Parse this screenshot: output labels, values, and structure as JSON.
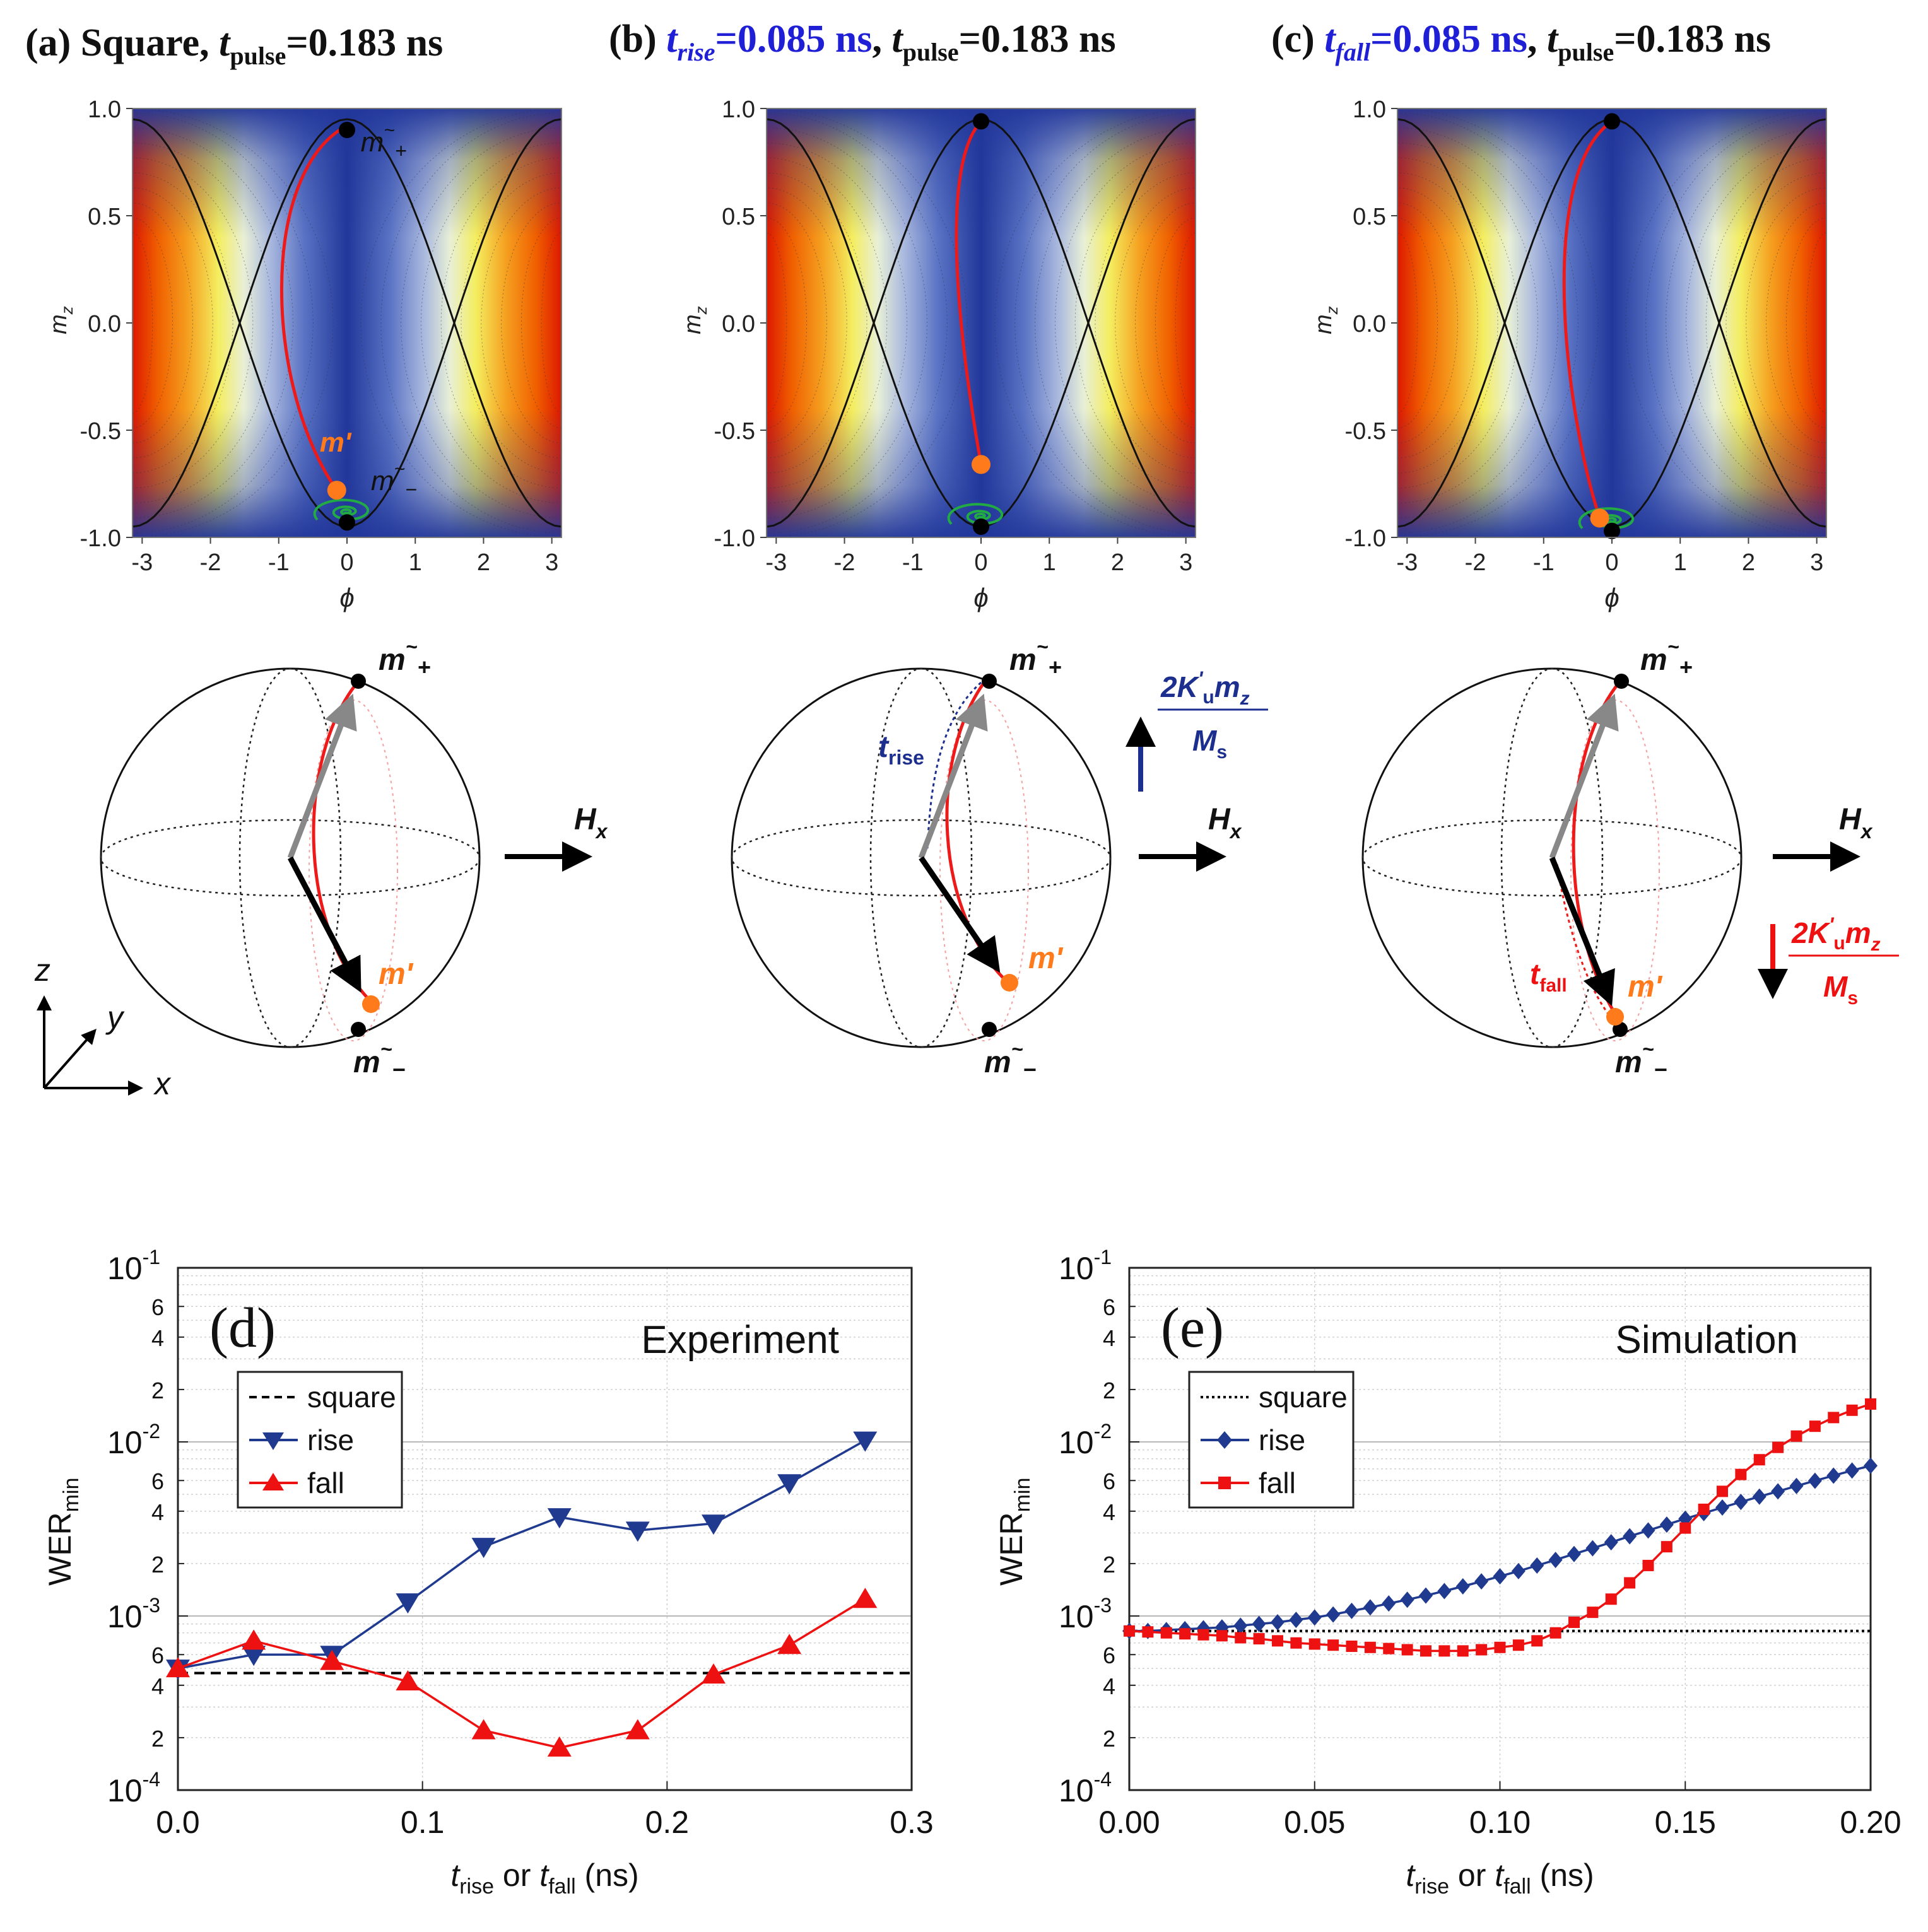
{
  "colors": {
    "blue_dark": "#1c2f8f",
    "blue_mid": "#3a58b8",
    "heat_red": "#dd1a00",
    "heat_orange": "#f58a00",
    "heat_yellow": "#f4f25a",
    "trajectory_red": "#ee1a1a",
    "green": "#22aa44",
    "orange": "#ff7a1a",
    "title_blue": "#1f1fd6",
    "rise_blue": "#1f3a8f",
    "fall_red": "#ee1111"
  },
  "panel_a": {
    "prefix": "(a) Square, ",
    "t": "t",
    "pulse_sub": "pulse",
    "value": "=0.183 ns"
  },
  "panel_b": {
    "prefix": "(b) ",
    "t": "t",
    "rise_sub": "rise",
    "rise_value": "=0.085 ns",
    "sep": ", ",
    "pulse_sub": "pulse",
    "pulse_value": "=0.183 ns"
  },
  "panel_c": {
    "prefix": "(c) ",
    "t": "t",
    "fall_sub": "fall",
    "fall_value": "=0.085 ns",
    "sep": ", ",
    "pulse_sub": "pulse",
    "pulse_value": "=0.183 ns"
  },
  "energy_maps": {
    "ylabel": "m",
    "ylabel_sub": "z",
    "xlabel": "ϕ",
    "y_ticks": [
      "1.0",
      "0.5",
      "0.0",
      "-0.5",
      "-1.0"
    ],
    "x_ticks": [
      "-3",
      "-2",
      "-1",
      "0",
      "1",
      "2",
      "3"
    ],
    "label_m_plus": "m",
    "label_m_minus": "m",
    "label_m_prime": "m'"
  },
  "spheres": {
    "m_plus": "m",
    "m_minus": "m",
    "tilde": "~",
    "plus": "+",
    "minus": "−",
    "m_prime": "m'",
    "hx": "H",
    "hx_sub": "x",
    "t_rise": "t",
    "t_rise_sub": "rise",
    "t_fall": "t",
    "t_fall_sub": "fall",
    "field_num": "2K",
    "field_num_sup": "'",
    "field_num_sub": "u",
    "field_num_m": "m",
    "field_num_m_sub": "z",
    "field_den": "M",
    "field_den_sub": "s",
    "axis_z": "z",
    "axis_y": "y",
    "axis_x": "x"
  },
  "chart_data": [
    {
      "id": "d",
      "type": "line",
      "panel_label": "(d)",
      "title": "Experiment",
      "xlabel": "t",
      "xlabel_sub1": "rise",
      "xlabel_mid": " or ",
      "xlabel_sub2": "fall",
      "xlabel_units": " (ns)",
      "ylabel": "WER",
      "ylabel_sub": "min",
      "yscale": "log",
      "xlim": [
        0,
        0.3
      ],
      "ylim": [
        0.0001,
        0.1
      ],
      "x_ticks": [
        0,
        0.1,
        0.2,
        0.3
      ],
      "x_tick_labels": [
        "0.0",
        "0.1",
        "0.2",
        "0.3"
      ],
      "y_major": [
        0.0001,
        0.001,
        0.01,
        0.1
      ],
      "y_major_bases": [
        "10",
        "10",
        "10",
        "10"
      ],
      "y_major_exps": [
        "-4",
        "-3",
        "-2",
        "-1"
      ],
      "y_minor_labels": [
        "2",
        "4",
        "6"
      ],
      "legend": [
        "square",
        "rise",
        "fall"
      ],
      "series": [
        {
          "name": "square",
          "style": "dashed",
          "color": "#000000",
          "x": [
            0,
            0.3
          ],
          "values": [
            0.00047,
            0.00047
          ]
        },
        {
          "name": "rise",
          "marker": "triangle-down",
          "color": "#1f3a8f",
          "x": [
            0,
            0.031,
            0.063,
            0.094,
            0.125,
            0.156,
            0.188,
            0.219,
            0.25,
            0.281
          ],
          "values": [
            0.0005,
            0.0006,
            0.0006,
            0.0012,
            0.0025,
            0.0037,
            0.0031,
            0.0034,
            0.0058,
            0.0102
          ]
        },
        {
          "name": "fall",
          "marker": "triangle-up",
          "color": "#ee1111",
          "x": [
            0,
            0.031,
            0.063,
            0.094,
            0.125,
            0.156,
            0.188,
            0.219,
            0.25,
            0.281
          ],
          "values": [
            0.0005,
            0.00072,
            0.00055,
            0.00042,
            0.00022,
            0.000175,
            0.00022,
            0.00046,
            0.00068,
            0.00125
          ]
        }
      ]
    },
    {
      "id": "e",
      "type": "line",
      "panel_label": "(e)",
      "title": "Simulation",
      "xlabel": "t",
      "xlabel_sub1": "rise",
      "xlabel_mid": " or ",
      "xlabel_sub2": "fall",
      "xlabel_units": " (ns)",
      "ylabel": "WER",
      "ylabel_sub": "min",
      "yscale": "log",
      "xlim": [
        0,
        0.2
      ],
      "ylim": [
        0.0001,
        0.1
      ],
      "x_ticks": [
        0,
        0.05,
        0.1,
        0.15,
        0.2
      ],
      "x_tick_labels": [
        "0.00",
        "0.05",
        "0.10",
        "0.15",
        "0.20"
      ],
      "y_major": [
        0.0001,
        0.001,
        0.01,
        0.1
      ],
      "y_major_bases": [
        "10",
        "10",
        "10",
        "10"
      ],
      "y_major_exps": [
        "-4",
        "-3",
        "-2",
        "-1"
      ],
      "y_minor_labels": [
        "2",
        "4",
        "6"
      ],
      "legend": [
        "square",
        "rise",
        "fall"
      ],
      "series": [
        {
          "name": "square",
          "style": "dotted",
          "color": "#000000",
          "x": [
            0,
            0.2
          ],
          "values": [
            0.00082,
            0.00082
          ]
        },
        {
          "name": "rise",
          "marker": "diamond",
          "color": "#1f3a8f",
          "x": [
            0,
            0.005,
            0.01,
            0.015,
            0.02,
            0.025,
            0.03,
            0.035,
            0.04,
            0.045,
            0.05,
            0.055,
            0.06,
            0.065,
            0.07,
            0.075,
            0.08,
            0.085,
            0.09,
            0.095,
            0.1,
            0.105,
            0.11,
            0.115,
            0.12,
            0.125,
            0.13,
            0.135,
            0.14,
            0.145,
            0.15,
            0.155,
            0.16,
            0.165,
            0.17,
            0.175,
            0.18,
            0.185,
            0.19,
            0.195,
            0.2
          ],
          "values": [
            0.00082,
            0.00082,
            0.00083,
            0.00084,
            0.00085,
            0.00086,
            0.00088,
            0.0009,
            0.00092,
            0.00095,
            0.00098,
            0.00102,
            0.00107,
            0.00112,
            0.00118,
            0.00124,
            0.00131,
            0.00139,
            0.00148,
            0.00158,
            0.00169,
            0.00181,
            0.00195,
            0.0021,
            0.00227,
            0.00245,
            0.00265,
            0.00287,
            0.0031,
            0.00335,
            0.00362,
            0.0039,
            0.0042,
            0.00452,
            0.00485,
            0.0052,
            0.00558,
            0.00598,
            0.0064,
            0.00685,
            0.0073
          ]
        },
        {
          "name": "fall",
          "marker": "square",
          "color": "#ee1111",
          "x": [
            0,
            0.005,
            0.01,
            0.015,
            0.02,
            0.025,
            0.03,
            0.035,
            0.04,
            0.045,
            0.05,
            0.055,
            0.06,
            0.065,
            0.07,
            0.075,
            0.08,
            0.085,
            0.09,
            0.095,
            0.1,
            0.105,
            0.11,
            0.115,
            0.12,
            0.125,
            0.13,
            0.135,
            0.14,
            0.145,
            0.15,
            0.155,
            0.16,
            0.165,
            0.17,
            0.175,
            0.18,
            0.185,
            0.19,
            0.195,
            0.2
          ],
          "values": [
            0.00082,
            0.00081,
            0.0008,
            0.00079,
            0.00078,
            0.00077,
            0.00075,
            0.00074,
            0.00072,
            0.0007,
            0.00069,
            0.00068,
            0.00067,
            0.00066,
            0.00065,
            0.00064,
            0.00063,
            0.00063,
            0.00063,
            0.00064,
            0.00066,
            0.00068,
            0.00072,
            0.0008,
            0.00092,
            0.00105,
            0.00125,
            0.00155,
            0.00195,
            0.0025,
            0.0032,
            0.0041,
            0.0052,
            0.0065,
            0.0079,
            0.0093,
            0.0108,
            0.0123,
            0.0138,
            0.0152,
            0.0165
          ]
        }
      ]
    }
  ]
}
